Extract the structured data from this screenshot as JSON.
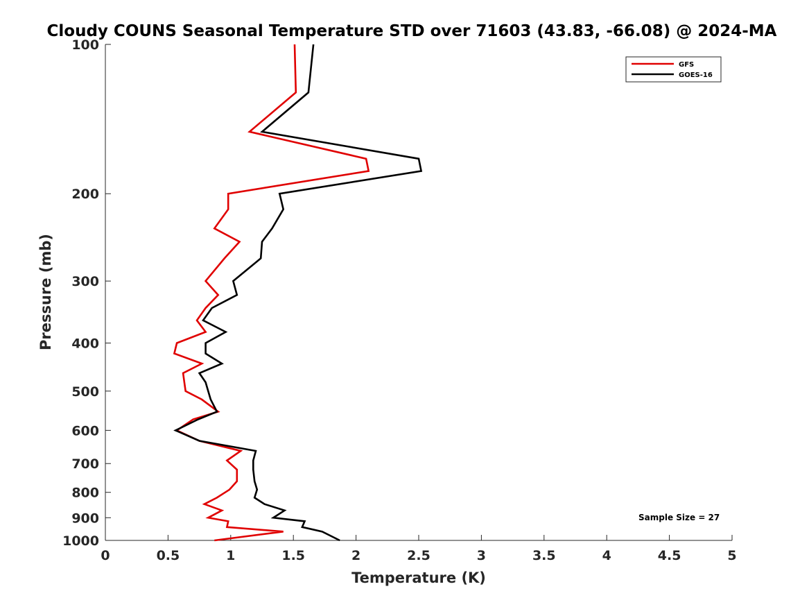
{
  "chart_data": {
    "type": "line",
    "title": "Cloudy COUNS Seasonal Temperature STD over 71603 (43.83, -66.08) @ 2024-MA",
    "xlabel": "Temperature (K)",
    "ylabel": "Pressure (mb)",
    "xlim": [
      0,
      5
    ],
    "ylim": [
      100,
      1000
    ],
    "yscale": "log",
    "y_reversed": true,
    "xticks": [
      "0",
      "0.5",
      "1",
      "1.5",
      "2",
      "2.5",
      "3",
      "3.5",
      "4",
      "4.5",
      "5"
    ],
    "xtick_values": [
      0,
      0.5,
      1,
      1.5,
      2,
      2.5,
      3,
      3.5,
      4,
      4.5,
      5
    ],
    "yticks": [
      "100",
      "200",
      "300",
      "400",
      "500",
      "600",
      "700",
      "800",
      "900",
      "1000"
    ],
    "ytick_values": [
      100,
      200,
      300,
      400,
      500,
      600,
      700,
      800,
      900,
      1000
    ],
    "grid": false,
    "legend_position": "top-right",
    "annotation": "Sample Size = 27",
    "series": [
      {
        "name": "GFS",
        "color": "#e00000",
        "points": [
          [
            1.51,
            100
          ],
          [
            1.52,
            125
          ],
          [
            1.15,
            150
          ],
          [
            2.08,
            170
          ],
          [
            2.1,
            180
          ],
          [
            0.98,
            200
          ],
          [
            0.98,
            215
          ],
          [
            0.87,
            235
          ],
          [
            1.07,
            250
          ],
          [
            0.95,
            270
          ],
          [
            0.8,
            300
          ],
          [
            0.9,
            320
          ],
          [
            0.8,
            340
          ],
          [
            0.73,
            360
          ],
          [
            0.8,
            380
          ],
          [
            0.57,
            400
          ],
          [
            0.55,
            420
          ],
          [
            0.77,
            440
          ],
          [
            0.62,
            460
          ],
          [
            0.63,
            480
          ],
          [
            0.64,
            500
          ],
          [
            0.77,
            520
          ],
          [
            0.9,
            550
          ],
          [
            0.7,
            570
          ],
          [
            0.57,
            600
          ],
          [
            0.75,
            630
          ],
          [
            1.08,
            660
          ],
          [
            0.97,
            690
          ],
          [
            1.05,
            720
          ],
          [
            1.05,
            760
          ],
          [
            0.99,
            790
          ],
          [
            0.89,
            820
          ],
          [
            0.79,
            845
          ],
          [
            0.93,
            870
          ],
          [
            0.82,
            900
          ],
          [
            0.98,
            915
          ],
          [
            0.97,
            940
          ],
          [
            1.42,
            960
          ],
          [
            0.87,
            1000
          ]
        ]
      },
      {
        "name": "GOES-16",
        "color": "#000000",
        "points": [
          [
            1.66,
            100
          ],
          [
            1.62,
            125
          ],
          [
            1.25,
            150
          ],
          [
            2.5,
            170
          ],
          [
            2.52,
            180
          ],
          [
            1.39,
            200
          ],
          [
            1.42,
            215
          ],
          [
            1.33,
            235
          ],
          [
            1.25,
            250
          ],
          [
            1.24,
            270
          ],
          [
            1.02,
            300
          ],
          [
            1.05,
            320
          ],
          [
            0.85,
            340
          ],
          [
            0.78,
            360
          ],
          [
            0.96,
            380
          ],
          [
            0.8,
            400
          ],
          [
            0.8,
            420
          ],
          [
            0.93,
            440
          ],
          [
            0.75,
            460
          ],
          [
            0.8,
            480
          ],
          [
            0.82,
            500
          ],
          [
            0.84,
            520
          ],
          [
            0.89,
            550
          ],
          [
            0.74,
            570
          ],
          [
            0.56,
            600
          ],
          [
            0.75,
            630
          ],
          [
            1.2,
            660
          ],
          [
            1.18,
            690
          ],
          [
            1.18,
            720
          ],
          [
            1.19,
            760
          ],
          [
            1.21,
            790
          ],
          [
            1.19,
            820
          ],
          [
            1.27,
            845
          ],
          [
            1.43,
            870
          ],
          [
            1.34,
            900
          ],
          [
            1.59,
            915
          ],
          [
            1.57,
            940
          ],
          [
            1.73,
            960
          ],
          [
            1.87,
            1000
          ]
        ]
      }
    ]
  }
}
